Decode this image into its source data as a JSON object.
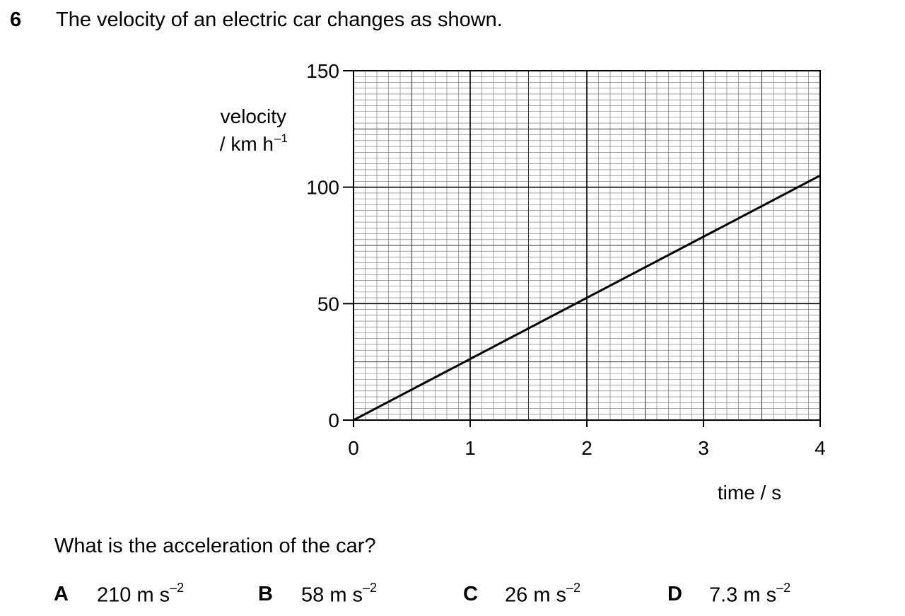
{
  "question": {
    "number": "6",
    "stem": "The velocity of an electric car changes as shown.",
    "prompt": "What is the acceleration of the car?"
  },
  "options": [
    {
      "letter": "A",
      "value": "210 m s",
      "exponent": "–2"
    },
    {
      "letter": "B",
      "value": "58 m s",
      "exponent": "–2"
    },
    {
      "letter": "C",
      "value": "26 m s",
      "exponent": "–2"
    },
    {
      "letter": "D",
      "value": "7.3 m s",
      "exponent": "–2"
    }
  ],
  "chart_data": {
    "type": "line",
    "ylabel_line1": "velocity",
    "ylabel_line2": "/ km h",
    "ylabel_exponent": "–1",
    "xlabel": "time / s",
    "xlim": [
      0,
      4
    ],
    "ylim": [
      0,
      150
    ],
    "x_ticks": [
      "0",
      "1",
      "2",
      "3",
      "4"
    ],
    "y_ticks": [
      "0",
      "50",
      "100",
      "150"
    ],
    "grid": true,
    "series": [
      {
        "x": [
          0,
          4
        ],
        "values": [
          0,
          105
        ]
      }
    ]
  }
}
